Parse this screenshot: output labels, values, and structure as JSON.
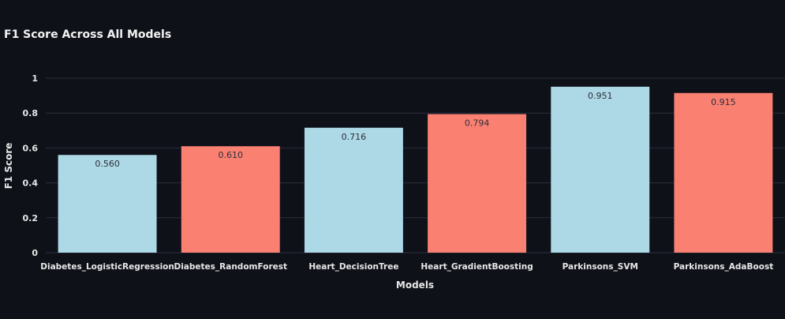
{
  "chart_data": {
    "type": "bar",
    "title": "F1 Score Across All Models",
    "xlabel": "Models",
    "ylabel": "F1 Score",
    "ylim": [
      0,
      1
    ],
    "yticks": [
      "0",
      "0.2",
      "0.4",
      "0.6",
      "0.8",
      "1"
    ],
    "grid": true,
    "categories": [
      "Diabetes_LogisticRegression",
      "Diabetes_RandomForest",
      "Heart_DecisionTree",
      "Heart_GradientBoosting",
      "Parkinsons_SVM",
      "Parkinsons_AdaBoost"
    ],
    "values": [
      0.56,
      0.61,
      0.716,
      0.794,
      0.951,
      0.915
    ],
    "value_labels": [
      "0.560",
      "0.610",
      "0.716",
      "0.794",
      "0.951",
      "0.915"
    ],
    "bar_colors": [
      "#add8e6",
      "#fa8072",
      "#add8e6",
      "#fa8072",
      "#add8e6",
      "#fa8072"
    ]
  },
  "colors": {
    "background": "#0f1119",
    "grid": "#2a2e3a",
    "text": "#e8e8e8",
    "value_label": "#2b2f3a"
  }
}
